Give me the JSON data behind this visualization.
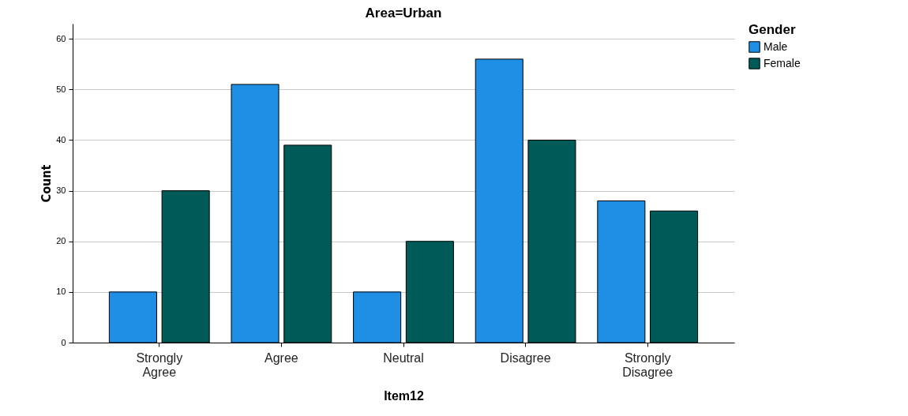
{
  "chart_data": {
    "type": "bar",
    "title": "Area=Urban",
    "xlabel": "Item12",
    "ylabel": "Count",
    "legend_title": "Gender",
    "categories": [
      "Strongly Agree",
      "Agree",
      "Neutral",
      "Disagree",
      "Strongly Disagree"
    ],
    "series": [
      {
        "name": "Male",
        "color": "#1f8fe5",
        "values": [
          10,
          51,
          10,
          56,
          28
        ]
      },
      {
        "name": "Female",
        "color": "#005a57",
        "values": [
          30,
          39,
          20,
          40,
          26
        ]
      }
    ],
    "ylim": [
      0,
      63
    ],
    "yticks": [
      0,
      10,
      20,
      30,
      40,
      50,
      60
    ],
    "grid": "y",
    "legend": "top right"
  }
}
